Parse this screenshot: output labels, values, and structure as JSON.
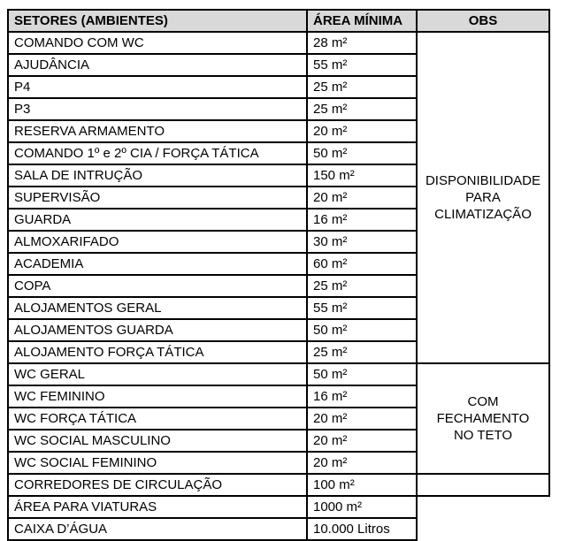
{
  "table": {
    "headers": {
      "setores": "SETORES (AMBIENTES)",
      "area": "ÁREA MÍNIMA",
      "obs": "OBS"
    },
    "rows": [
      {
        "name": "COMANDO COM WC",
        "area": "28 m²"
      },
      {
        "name": "AJUDÂNCIA",
        "area": "55 m²"
      },
      {
        "name": "P4",
        "area": "25 m²"
      },
      {
        "name": "P3",
        "area": "25 m²"
      },
      {
        "name": "RESERVA ARMAMENTO",
        "area": "20 m²"
      },
      {
        "name": "COMANDO 1º e 2º CIA / FORÇA TÁTICA",
        "area": "50 m²"
      },
      {
        "name": "SALA DE INTRUÇÃO",
        "area": "150 m²"
      },
      {
        "name": "SUPERVISÃO",
        "area": "20 m²"
      },
      {
        "name": "GUARDA",
        "area": "16 m²"
      },
      {
        "name": "ALMOXARIFADO",
        "area": "30 m²"
      },
      {
        "name": "ACADEMIA",
        "area": "60 m²"
      },
      {
        "name": "COPA",
        "area": "25 m²"
      },
      {
        "name": "ALOJAMENTOS GERAL",
        "area": "55 m²"
      },
      {
        "name": "ALOJAMENTOS GUARDA",
        "area": "50 m²"
      },
      {
        "name": "ALOJAMENTO FORÇA TÁTICA",
        "area": "25 m²"
      },
      {
        "name": "WC GERAL",
        "area": "50 m²"
      },
      {
        "name": "WC FEMININO",
        "area": "16 m²"
      },
      {
        "name": "WC FORÇA TÁTICA",
        "area": "20 m²"
      },
      {
        "name": "WC SOCIAL MASCULINO",
        "area": "20 m²"
      },
      {
        "name": "WC SOCIAL FEMININO",
        "area": "20 m²"
      },
      {
        "name": "CORREDORES DE CIRCULAÇÃO",
        "area": "100 m²"
      },
      {
        "name": "ÁREA PARA VIATURAS",
        "area": "1000 m²"
      },
      {
        "name": "CAIXA D’ÁGUA",
        "area": "10.000 Litros"
      }
    ],
    "obs_groups": [
      {
        "text": "DISPONIBILIDADE\nPARA\nCLIMATIZAÇÃO"
      },
      {
        "text": "COM FECHAMENTO\nNO TETO"
      },
      {
        "text": ""
      }
    ]
  },
  "colors": {
    "header_bg": "#d9d9d9",
    "border": "#000000",
    "text": "#000000",
    "page_bg": "#ffffff"
  }
}
